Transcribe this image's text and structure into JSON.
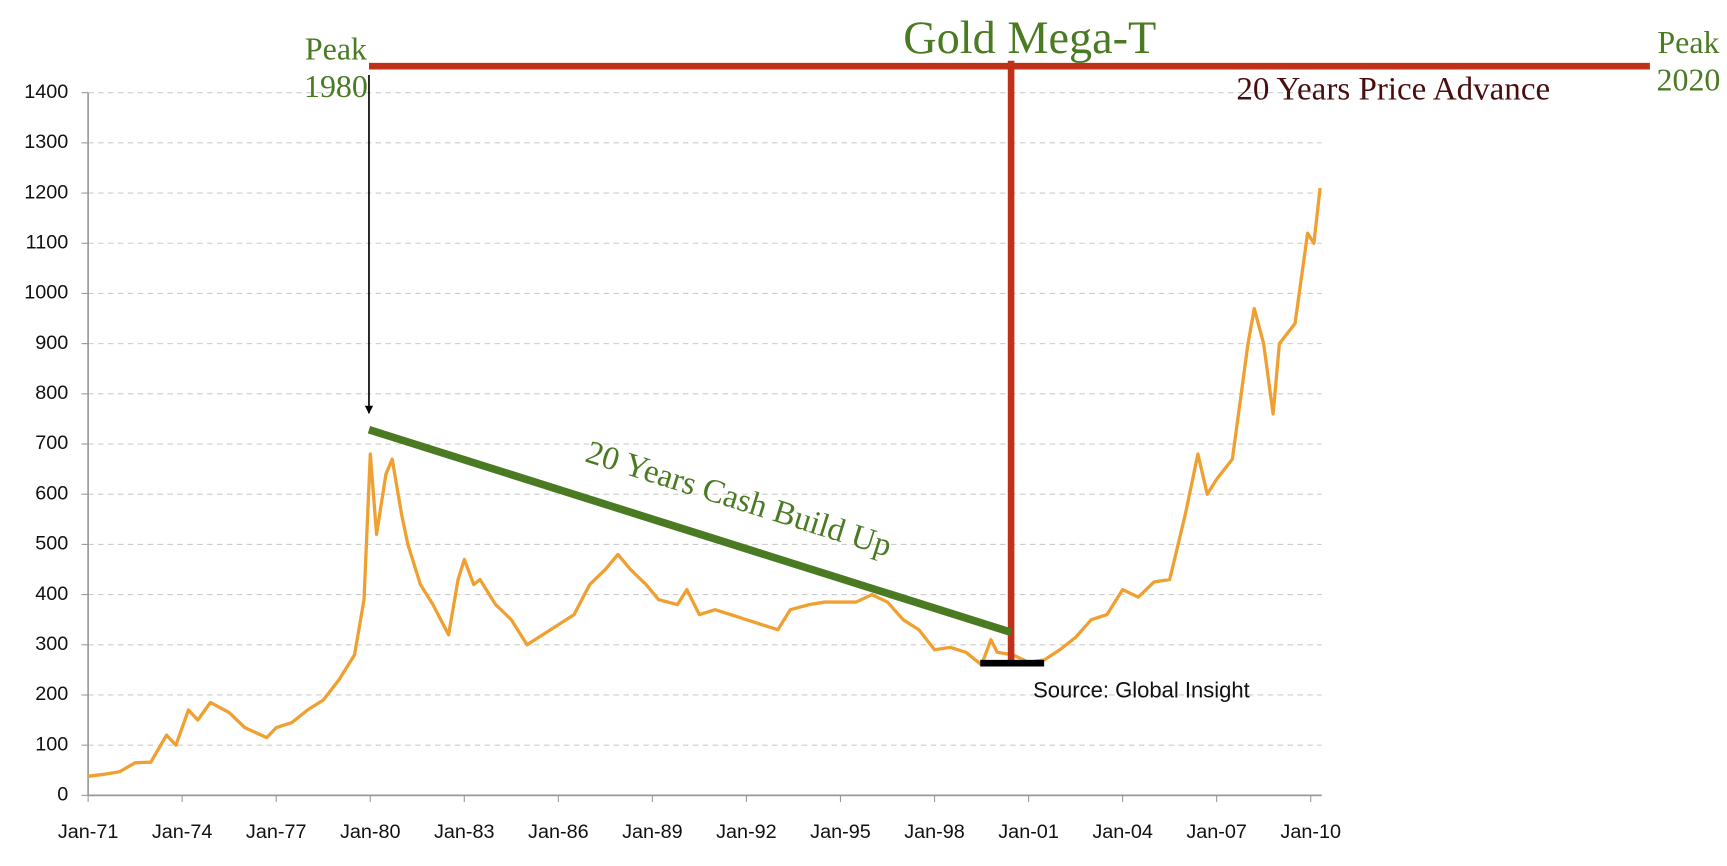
{
  "chart_data": {
    "type": "line",
    "title": "Gold Mega-T",
    "annotations": {
      "peak_1980": [
        "Peak",
        "1980"
      ],
      "peak_2020": [
        "Peak",
        "2020"
      ],
      "price_advance": "20 Years Price Advance",
      "cash_build_up": "20 Years Cash Build Up",
      "source": "Source: Global Insight"
    },
    "x": [
      1971,
      1971.5,
      1972,
      1972.5,
      1973,
      1973.5,
      1973.8,
      1974.2,
      1974.5,
      1974.9,
      1975.5,
      1976,
      1976.7,
      1977,
      1977.5,
      1978,
      1978.5,
      1979,
      1979.5,
      1979.8,
      1980,
      1980.2,
      1980.5,
      1980.7,
      1981,
      1981.2,
      1981.6,
      1982,
      1982.5,
      1982.8,
      1983,
      1983.3,
      1983.5,
      1984,
      1984.5,
      1985,
      1985.5,
      1986,
      1986.5,
      1987,
      1987.5,
      1987.9,
      1988.3,
      1988.8,
      1989.2,
      1989.8,
      1990.1,
      1990.5,
      1991,
      1991.5,
      1992,
      1992.5,
      1993,
      1993.4,
      1994,
      1994.5,
      1995,
      1995.5,
      1996,
      1996.5,
      1997,
      1997.5,
      1998,
      1998.5,
      1999,
      1999.5,
      1999.8,
      2000,
      2000.5,
      2001,
      2001.5,
      2002,
      2002.5,
      2003,
      2003.5,
      2004,
      2004.5,
      2005,
      2005.5,
      2006,
      2006.4,
      2006.7,
      2007,
      2007.5,
      2008,
      2008.2,
      2008.5,
      2008.8,
      2009,
      2009.5,
      2009.9,
      2010.1,
      2010.3
    ],
    "series": [
      {
        "color": "#f0a030",
        "values": [
          38,
          42,
          47,
          65,
          66,
          120,
          100,
          170,
          150,
          185,
          165,
          135,
          115,
          135,
          145,
          170,
          190,
          230,
          280,
          390,
          680,
          520,
          640,
          670,
          560,
          500,
          420,
          380,
          320,
          430,
          470,
          420,
          430,
          380,
          350,
          300,
          320,
          340,
          360,
          420,
          450,
          480,
          450,
          420,
          390,
          380,
          410,
          360,
          370,
          360,
          350,
          340,
          330,
          370,
          380,
          385,
          385,
          385,
          400,
          385,
          350,
          330,
          290,
          295,
          285,
          260,
          310,
          285,
          280,
          265,
          270,
          290,
          315,
          350,
          360,
          410,
          395,
          425,
          430,
          560,
          680,
          600,
          630,
          670,
          900,
          970,
          900,
          760,
          900,
          940,
          1120,
          1100,
          1210
        ]
      }
    ],
    "xlim": [
      1971,
      2010.35
    ],
    "xticks": [
      {
        "value": 1971,
        "label": "Jan-71"
      },
      {
        "value": 1974,
        "label": "Jan-74"
      },
      {
        "value": 1977,
        "label": "Jan-77"
      },
      {
        "value": 1980,
        "label": "Jan-80"
      },
      {
        "value": 1983,
        "label": "Jan-83"
      },
      {
        "value": 1986,
        "label": "Jan-86"
      },
      {
        "value": 1989,
        "label": "Jan-89"
      },
      {
        "value": 1992,
        "label": "Jan-92"
      },
      {
        "value": 1995,
        "label": "Jan-95"
      },
      {
        "value": 1998,
        "label": "Jan-98"
      },
      {
        "value": 2001,
        "label": "Jan-01"
      },
      {
        "value": 2004,
        "label": "Jan-04"
      },
      {
        "value": 2007,
        "label": "Jan-07"
      },
      {
        "value": 2010,
        "label": "Jan-10"
      }
    ],
    "ylim": [
      0,
      1400
    ],
    "yticks": [
      0,
      100,
      200,
      300,
      400,
      500,
      600,
      700,
      800,
      900,
      1000,
      1100,
      1200,
      1300,
      1400
    ],
    "grid": true
  }
}
